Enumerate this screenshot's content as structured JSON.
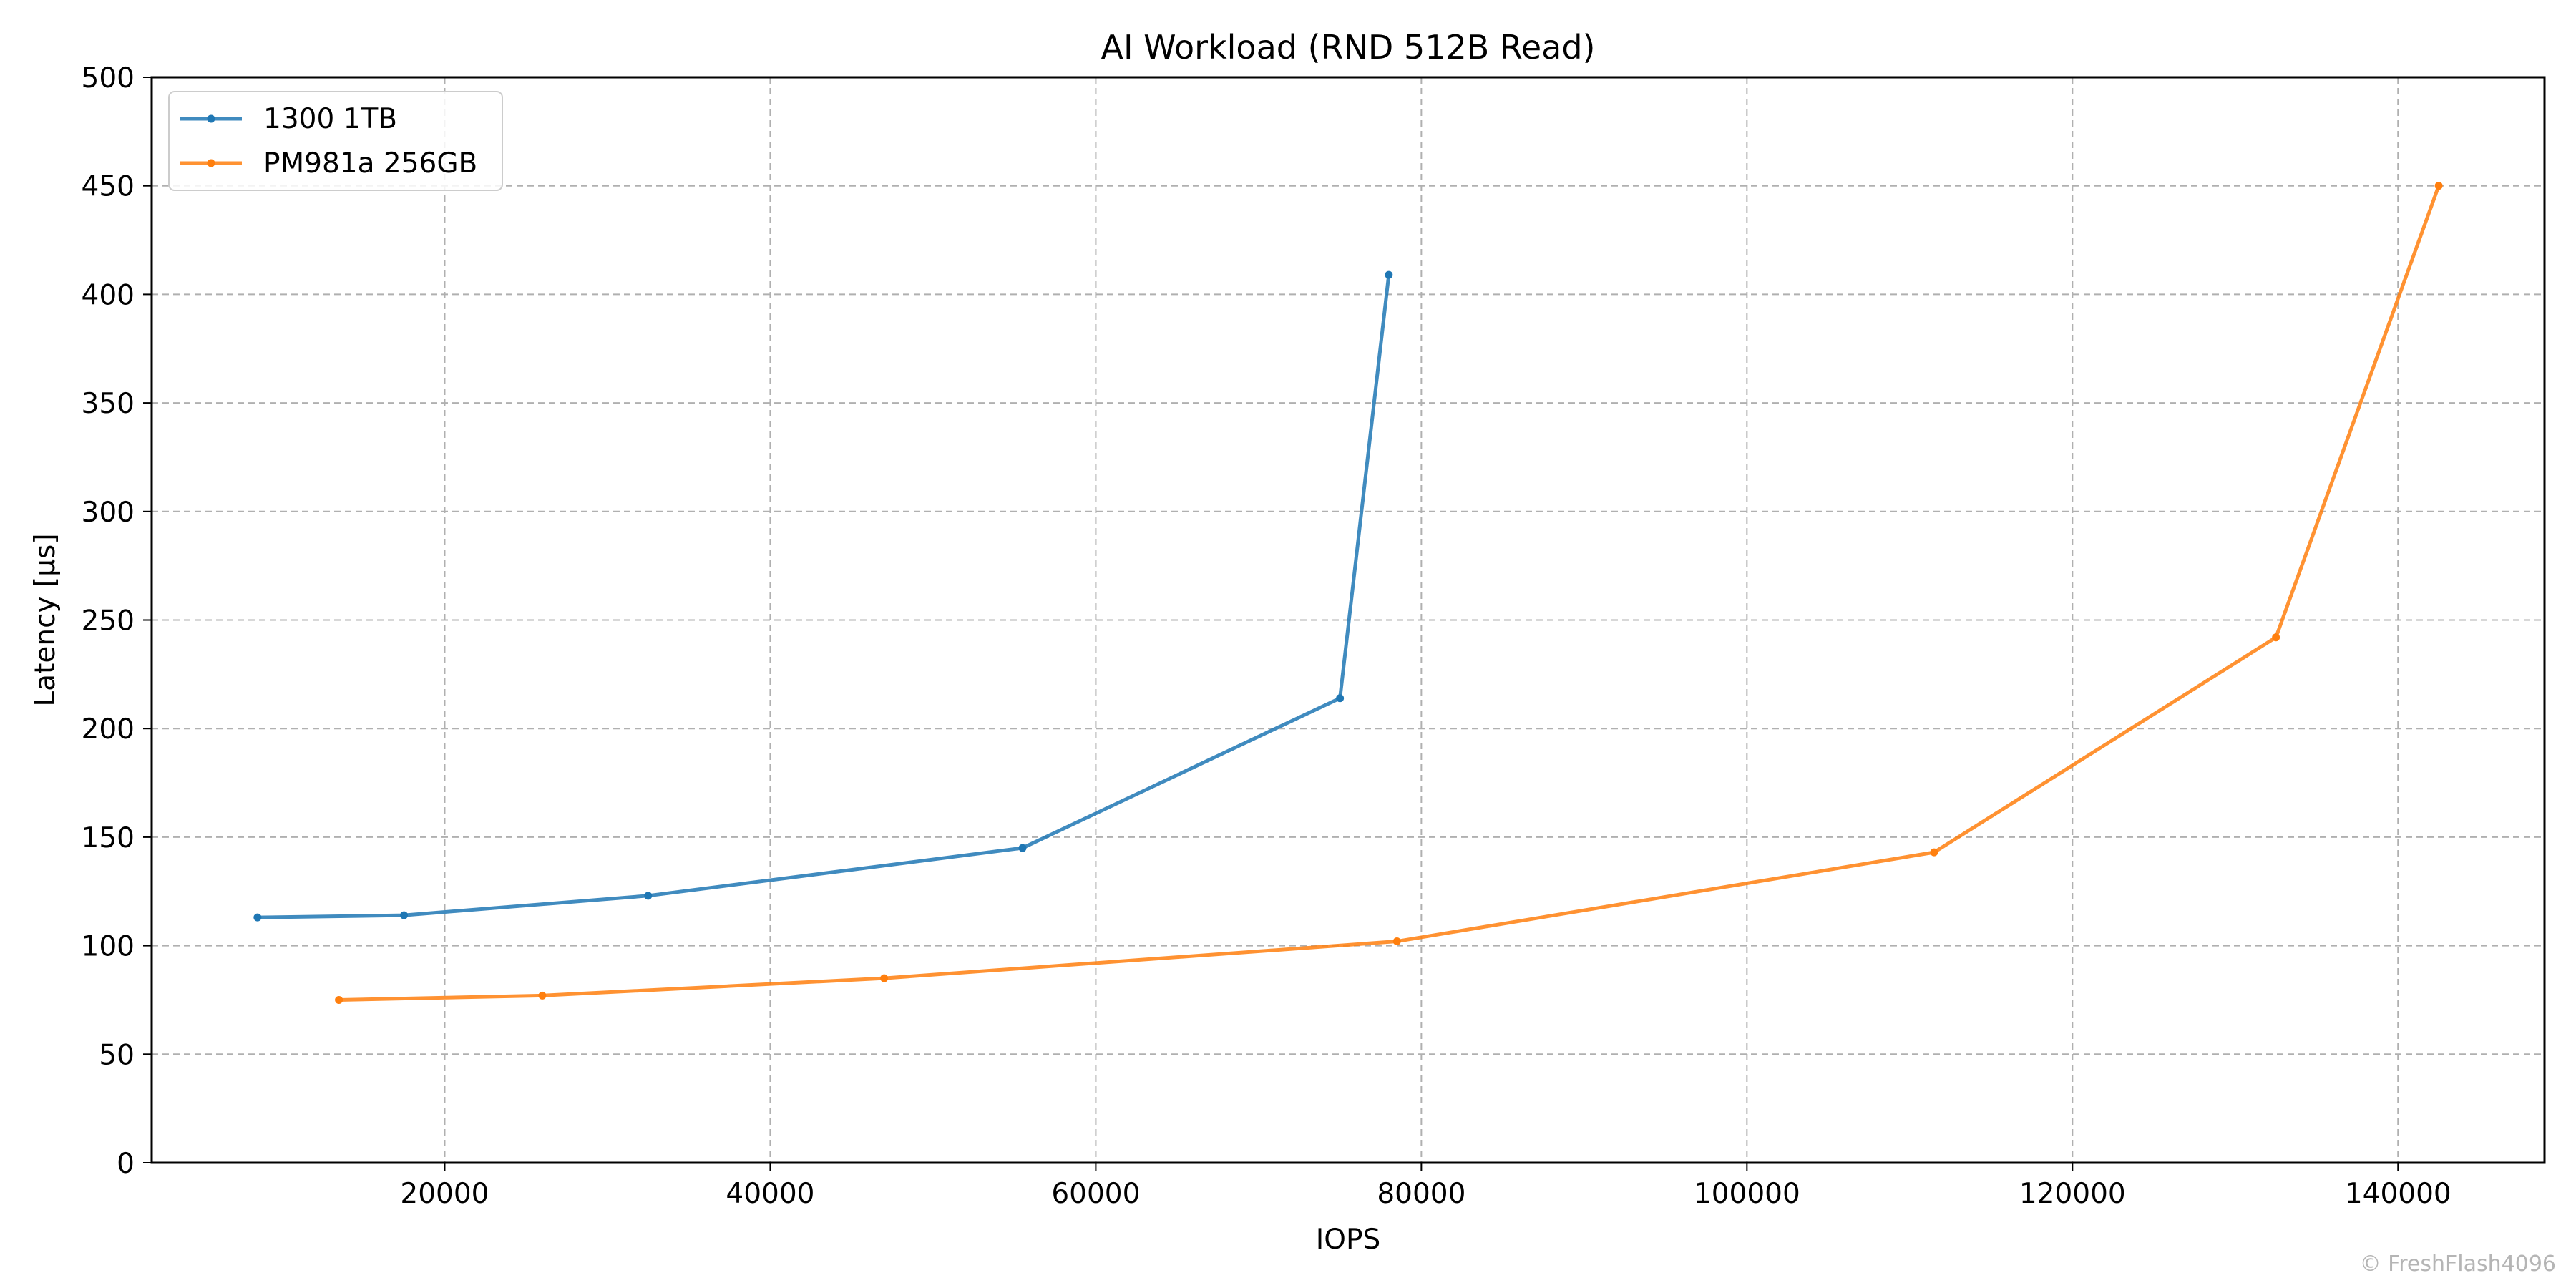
{
  "chart_data": {
    "type": "line",
    "title": "AI Workload (RND 512B Read)",
    "xlabel": "IOPS",
    "ylabel": "Latency [µs]",
    "xlim": [
      2000,
      149000
    ],
    "ylim": [
      0,
      500
    ],
    "xticks": [
      20000,
      40000,
      60000,
      80000,
      100000,
      120000,
      140000
    ],
    "yticks": [
      0,
      50,
      100,
      150,
      200,
      250,
      300,
      350,
      400,
      450,
      500
    ],
    "grid": true,
    "legend_position": "upper-left",
    "series": [
      {
        "name": "1300 1TB",
        "color": "#1f77b4",
        "x": [
          8500,
          17500,
          32500,
          55500,
          75000,
          78000
        ],
        "y": [
          113,
          114,
          123,
          145,
          214,
          409
        ]
      },
      {
        "name": "PM981a 256GB",
        "color": "#ff7f0e",
        "x": [
          13500,
          26000,
          47000,
          78500,
          111500,
          132500,
          142500
        ],
        "y": [
          75,
          77,
          85,
          102,
          143,
          242,
          450
        ]
      }
    ]
  },
  "watermark": "© FreshFlash4096"
}
